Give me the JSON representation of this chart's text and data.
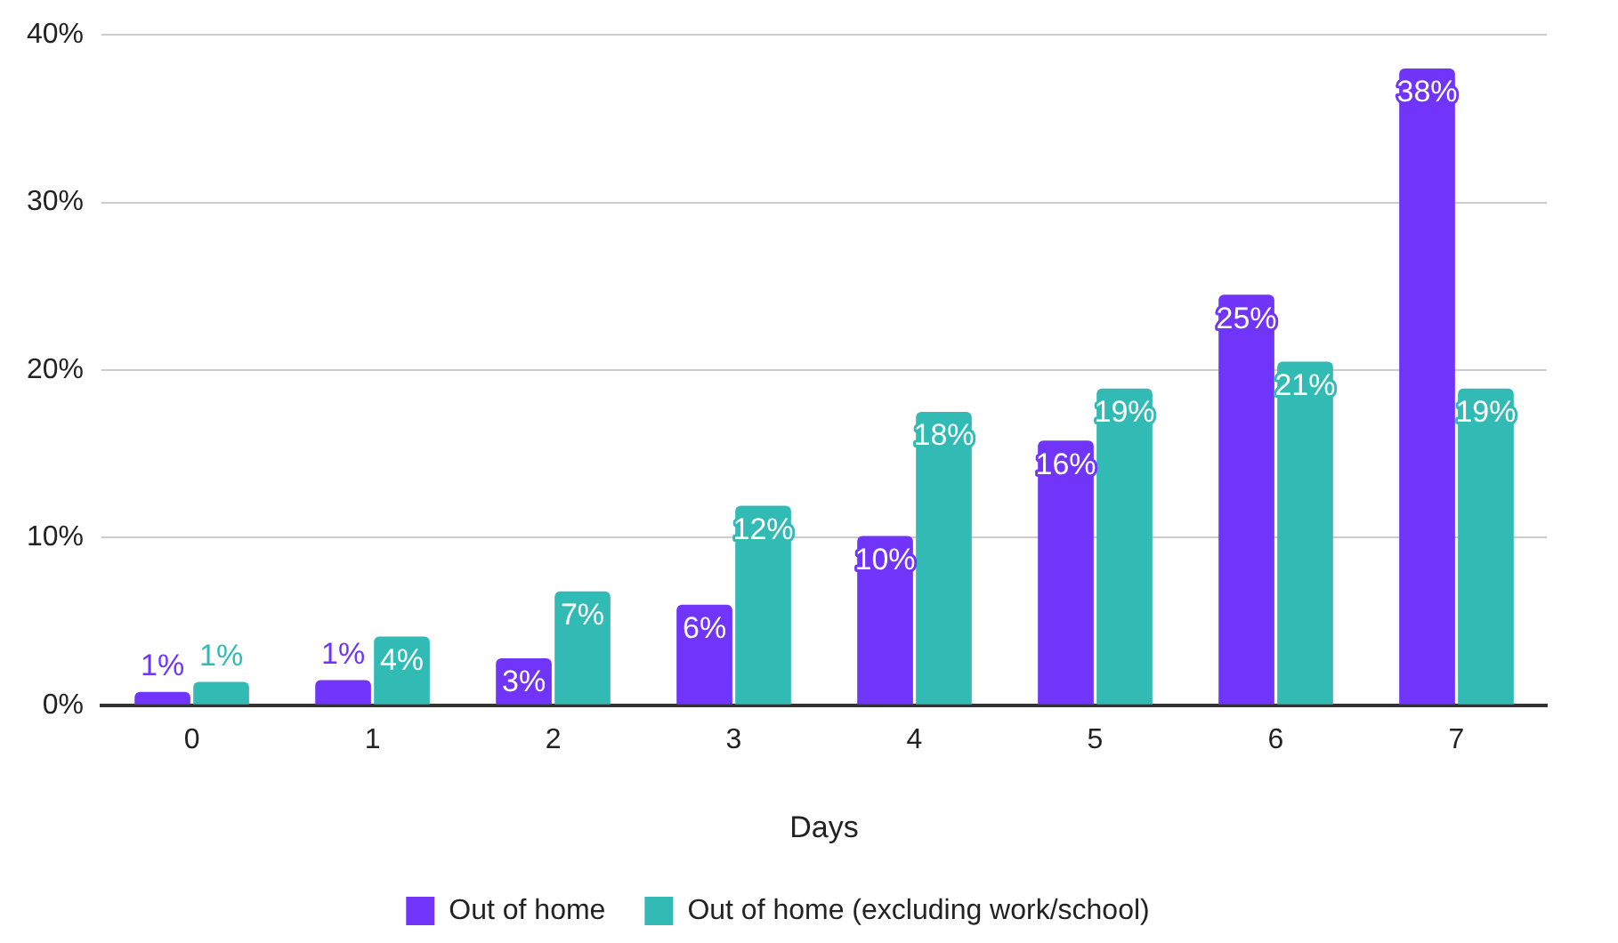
{
  "chart_data": {
    "type": "bar",
    "xlabel": "Days",
    "categories": [
      "0",
      "1",
      "2",
      "3",
      "4",
      "5",
      "6",
      "7"
    ],
    "ylim": [
      0,
      40
    ],
    "yticks": [
      {
        "value": 0,
        "label": "0%"
      },
      {
        "value": 10,
        "label": "10%"
      },
      {
        "value": 20,
        "label": "20%"
      },
      {
        "value": 30,
        "label": "30%"
      },
      {
        "value": 40,
        "label": "40%"
      }
    ],
    "grid": "y",
    "legend": "bottom",
    "series": [
      {
        "name": "Out of home",
        "color": "#7035f8",
        "values": [
          0.8,
          1.5,
          2.8,
          6.0,
          10.1,
          15.8,
          24.5,
          38.0
        ],
        "value_labels": [
          "1%",
          "1%",
          "3%",
          "6%",
          "10%",
          "16%",
          "25%",
          "38%"
        ]
      },
      {
        "name": "Out of home (excluding work/school)",
        "color": "#32bbb5",
        "values": [
          1.4,
          4.1,
          6.8,
          11.9,
          17.5,
          18.9,
          20.5,
          18.9
        ],
        "value_labels": [
          "1%",
          "4%",
          "7%",
          "12%",
          "18%",
          "19%",
          "21%",
          "19%"
        ]
      }
    ]
  }
}
